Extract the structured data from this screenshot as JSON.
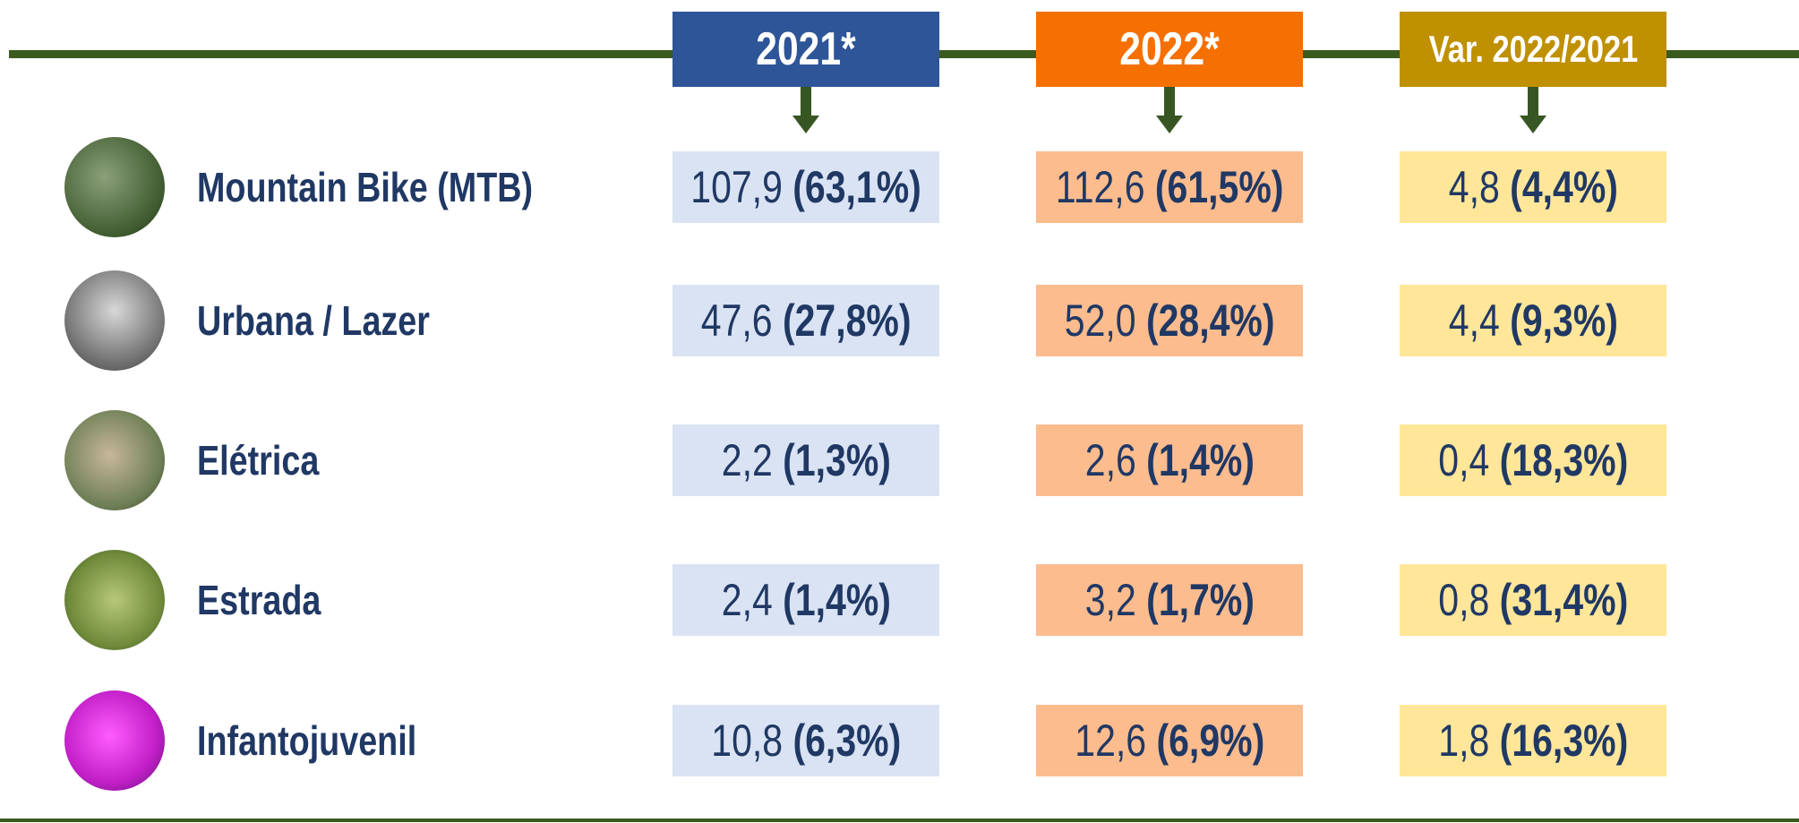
{
  "table": {
    "columns": [
      "2021*",
      "2022*",
      "Var. 2022/2021"
    ],
    "rows": [
      {
        "label": "Mountain Bike (MTB)",
        "cells": [
          {
            "value": "107,9",
            "pct": "(63,1%)"
          },
          {
            "value": "112,6",
            "pct": "(61,5%)"
          },
          {
            "value": "4,8",
            "pct": "(4,4%)"
          }
        ]
      },
      {
        "label": "Urbana / Lazer",
        "cells": [
          {
            "value": "47,6",
            "pct": "(27,8%)"
          },
          {
            "value": "52,0",
            "pct": "(28,4%)"
          },
          {
            "value": "4,4",
            "pct": "(9,3%)"
          }
        ]
      },
      {
        "label": "Elétrica",
        "cells": [
          {
            "value": "2,2",
            "pct": "(1,3%)"
          },
          {
            "value": "2,6",
            "pct": "(1,4%)"
          },
          {
            "value": "0,4",
            "pct": "(18,3%)"
          }
        ]
      },
      {
        "label": "Estrada",
        "cells": [
          {
            "value": "2,4",
            "pct": "(1,4%)"
          },
          {
            "value": "3,2",
            "pct": "(1,7%)"
          },
          {
            "value": "0,8",
            "pct": "(31,4%)"
          }
        ]
      },
      {
        "label": "Infantojuvenil",
        "cells": [
          {
            "value": "10,8",
            "pct": "(6,3%)"
          },
          {
            "value": "12,6",
            "pct": "(6,9%)"
          },
          {
            "value": "1,8",
            "pct": "(16,3%)"
          }
        ]
      }
    ]
  }
}
